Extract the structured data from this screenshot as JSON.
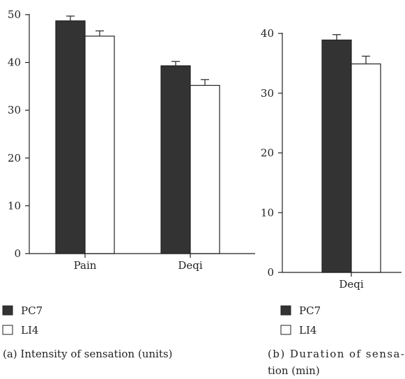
{
  "colors": {
    "PC7": "#333333",
    "LI4": "#ffffff",
    "axis": "#222222"
  },
  "chart_data": [
    {
      "type": "bar",
      "categories": [
        "Pain",
        "Deqi"
      ],
      "series": [
        {
          "name": "PC7",
          "values": [
            48.7,
            39.3
          ],
          "errors": [
            1.0,
            0.9
          ]
        },
        {
          "name": "LI4",
          "values": [
            45.5,
            35.2
          ],
          "errors": [
            1.1,
            1.2
          ]
        }
      ],
      "yticks": [
        0,
        10,
        20,
        30,
        40,
        50
      ],
      "ylim": [
        0,
        50
      ],
      "caption": "(a) Intensity of sensation (units)",
      "legend": [
        "PC7",
        "LI4"
      ]
    },
    {
      "type": "bar",
      "categories": [
        "Deqi"
      ],
      "series": [
        {
          "name": "PC7",
          "values": [
            38.9
          ],
          "errors": [
            0.9
          ]
        },
        {
          "name": "LI4",
          "values": [
            34.9
          ],
          "errors": [
            1.3
          ]
        }
      ],
      "yticks": [
        0,
        10,
        20,
        30,
        40
      ],
      "ylim": [
        0,
        40
      ],
      "caption_lines": [
        "(b) Duration of sensa-",
        "tion (min)"
      ],
      "legend": [
        "PC7",
        "LI4"
      ]
    }
  ]
}
